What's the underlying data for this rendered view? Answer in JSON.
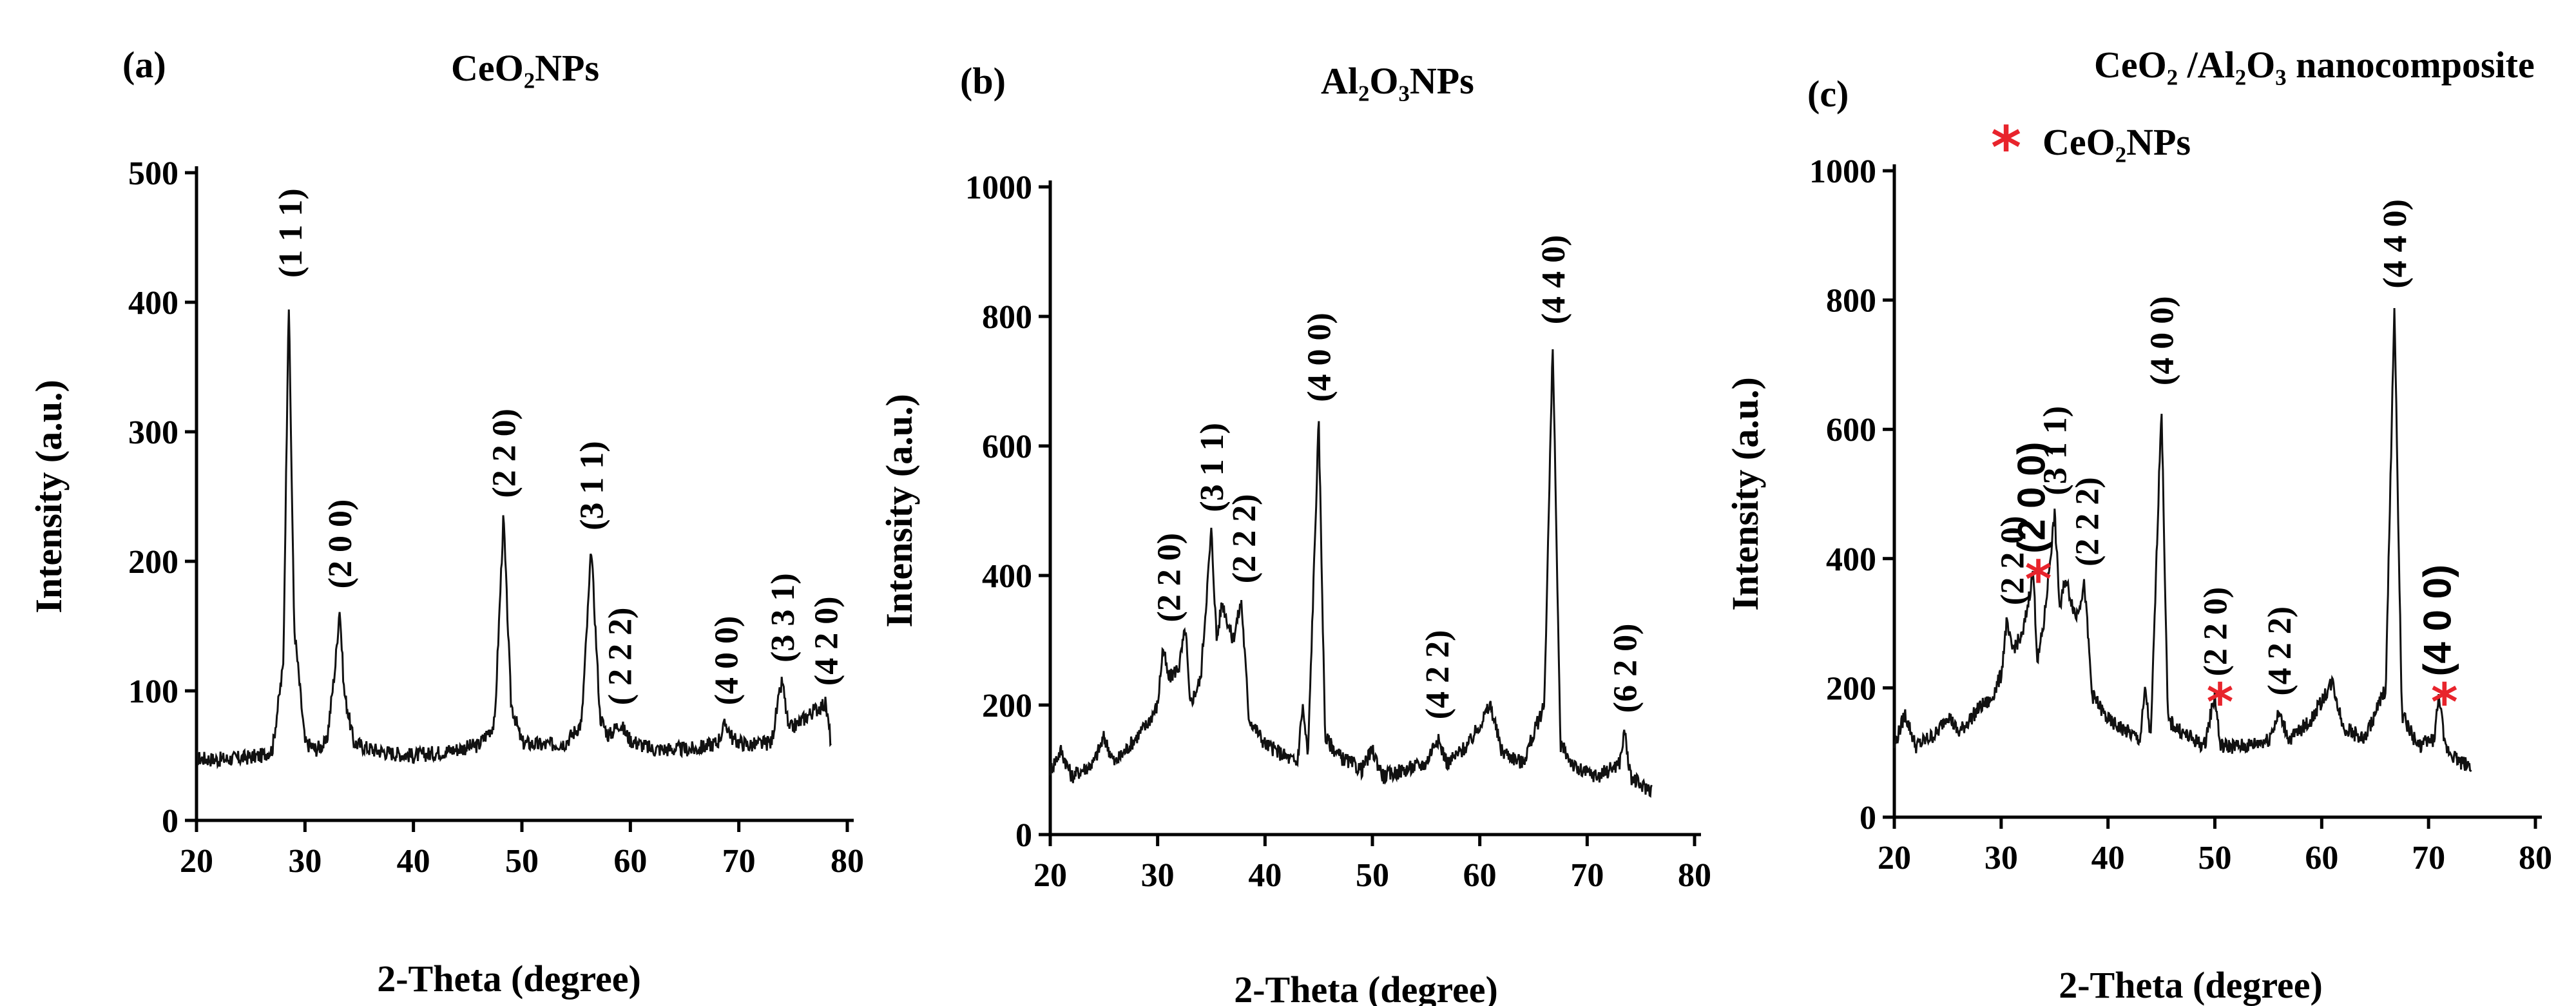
{
  "colors": {
    "axis": "#000000",
    "trace": "#111111",
    "marker": "#e8242c",
    "background": "#ffffff"
  },
  "chart_data": [
    {
      "id": "a",
      "type": "line",
      "panel_label": "(a)",
      "title": "CeO₂NPs",
      "xlabel": "2-Theta (degree)",
      "ylabel": "Intensity (a.u.)",
      "xlim": [
        20,
        80
      ],
      "ylim": [
        0,
        500
      ],
      "xticks": [
        20,
        30,
        40,
        50,
        60,
        70,
        80
      ],
      "yticks": [
        0,
        100,
        200,
        300,
        400,
        500
      ],
      "baseline": [
        [
          20,
          48
        ],
        [
          22,
          47
        ],
        [
          24,
          48
        ],
        [
          26,
          50
        ],
        [
          27,
          55
        ],
        [
          28,
          120
        ],
        [
          28.5,
          405
        ],
        [
          29,
          150
        ],
        [
          30,
          60
        ],
        [
          31,
          55
        ],
        [
          32,
          60
        ],
        [
          32.8,
          120
        ],
        [
          33.2,
          165
        ],
        [
          33.6,
          100
        ],
        [
          34.5,
          60
        ],
        [
          36,
          55
        ],
        [
          38,
          52
        ],
        [
          40,
          50
        ],
        [
          42,
          52
        ],
        [
          44,
          55
        ],
        [
          46,
          58
        ],
        [
          47.5,
          75
        ],
        [
          48.3,
          235
        ],
        [
          49,
          90
        ],
        [
          50,
          60
        ],
        [
          52,
          58
        ],
        [
          54,
          60
        ],
        [
          55.5,
          75
        ],
        [
          56.4,
          210
        ],
        [
          57.2,
          80
        ],
        [
          58,
          65
        ],
        [
          59,
          75
        ],
        [
          60,
          62
        ],
        [
          62,
          55
        ],
        [
          64,
          55
        ],
        [
          66,
          55
        ],
        [
          68,
          60
        ],
        [
          68.8,
          75
        ],
        [
          69.5,
          62
        ],
        [
          71,
          58
        ],
        [
          73,
          60
        ],
        [
          73.5,
          85
        ],
        [
          74,
          108
        ],
        [
          74.6,
          70
        ],
        [
          75.5,
          75
        ],
        [
          76.5,
          82
        ],
        [
          77.5,
          88
        ],
        [
          78,
          90
        ],
        [
          78.5,
          60
        ]
      ],
      "peaks": [
        {
          "label": "(1 1 1)",
          "x": 28.6,
          "y": 405
        },
        {
          "label": "(2 0 0)",
          "x": 33.2,
          "y": 165
        },
        {
          "label": "(2 2 0)",
          "x": 48.3,
          "y": 235
        },
        {
          "label": "(3 1 1)",
          "x": 56.4,
          "y": 210
        },
        {
          "label": "( 2 2 2)",
          "x": 59.0,
          "y": 75
        },
        {
          "label": "(4 0 0)",
          "x": 68.8,
          "y": 75
        },
        {
          "label": "(3 3 1)",
          "x": 74.0,
          "y": 108
        },
        {
          "label": "(4 2 0)",
          "x": 78.0,
          "y": 90
        }
      ],
      "markers": []
    },
    {
      "id": "b",
      "type": "line",
      "panel_label": "(b)",
      "title": "Al₂O₃NPs",
      "xlabel": "2-Theta (degree)",
      "ylabel": "Intensity (a.u.)",
      "xlim": [
        20,
        80
      ],
      "ylim": [
        0,
        1000
      ],
      "xticks": [
        20,
        30,
        40,
        50,
        60,
        70,
        80
      ],
      "yticks": [
        0,
        200,
        400,
        600,
        800,
        1000
      ],
      "baseline": [
        [
          20,
          100
        ],
        [
          21,
          130
        ],
        [
          22,
          90
        ],
        [
          24,
          110
        ],
        [
          25,
          150
        ],
        [
          26,
          110
        ],
        [
          28,
          150
        ],
        [
          29,
          170
        ],
        [
          30,
          200
        ],
        [
          30.5,
          290
        ],
        [
          31,
          240
        ],
        [
          32,
          260
        ],
        [
          32.6,
          320
        ],
        [
          33,
          200
        ],
        [
          34,
          240
        ],
        [
          35,
          470
        ],
        [
          35.5,
          300
        ],
        [
          36,
          360
        ],
        [
          37,
          300
        ],
        [
          37.8,
          360
        ],
        [
          38.5,
          180
        ],
        [
          40,
          140
        ],
        [
          42,
          120
        ],
        [
          43,
          110
        ],
        [
          43.5,
          200
        ],
        [
          44,
          120
        ],
        [
          45,
          640
        ],
        [
          45.6,
          150
        ],
        [
          47,
          120
        ],
        [
          49,
          100
        ],
        [
          50,
          130
        ],
        [
          51,
          90
        ],
        [
          53,
          100
        ],
        [
          55,
          110
        ],
        [
          56,
          150
        ],
        [
          57,
          110
        ],
        [
          59,
          140
        ],
        [
          60,
          170
        ],
        [
          61,
          200
        ],
        [
          62,
          130
        ],
        [
          64,
          110
        ],
        [
          66,
          200
        ],
        [
          66.8,
          760
        ],
        [
          67.5,
          140
        ],
        [
          69,
          100
        ],
        [
          71,
          90
        ],
        [
          73,
          110
        ],
        [
          73.5,
          160
        ],
        [
          74,
          90
        ],
        [
          75,
          75
        ],
        [
          76,
          70
        ]
      ],
      "peaks": [
        {
          "label": "(2 2 0)",
          "x": 31.0,
          "y": 300
        },
        {
          "label": "(3 1 1)",
          "x": 35.0,
          "y": 470
        },
        {
          "label": "(2 2 2)",
          "x": 38.0,
          "y": 360
        },
        {
          "label": "(4 0 0)",
          "x": 45.0,
          "y": 640
        },
        {
          "label": "(4 2 2)",
          "x": 56.0,
          "y": 150
        },
        {
          "label": "(4 4 0)",
          "x": 66.8,
          "y": 760
        },
        {
          "label": "(6 2 0)",
          "x": 73.5,
          "y": 160
        }
      ],
      "markers": []
    },
    {
      "id": "c",
      "type": "line",
      "panel_label": "(c)",
      "title": "CeO₂ /Al₂O₃ nanocomposite",
      "legend_label": "CeO₂NPs",
      "xlabel": "2-Theta (degree)",
      "ylabel": "Intensity (a.u.)",
      "xlim": [
        20,
        80
      ],
      "ylim": [
        0,
        1000
      ],
      "xticks": [
        20,
        30,
        40,
        50,
        60,
        70,
        80
      ],
      "yticks": [
        0,
        200,
        400,
        600,
        800,
        1000
      ],
      "baseline": [
        [
          20,
          110
        ],
        [
          21,
          160
        ],
        [
          22,
          110
        ],
        [
          24,
          130
        ],
        [
          25,
          160
        ],
        [
          26,
          130
        ],
        [
          28,
          170
        ],
        [
          29,
          180
        ],
        [
          30,
          220
        ],
        [
          30.5,
          300
        ],
        [
          31,
          260
        ],
        [
          32,
          280
        ],
        [
          33,
          380
        ],
        [
          33.4,
          240
        ],
        [
          34,
          300
        ],
        [
          35,
          470
        ],
        [
          35.5,
          320
        ],
        [
          36,
          370
        ],
        [
          37,
          310
        ],
        [
          37.8,
          360
        ],
        [
          38.5,
          190
        ],
        [
          40,
          150
        ],
        [
          42,
          130
        ],
        [
          43,
          120
        ],
        [
          43.5,
          200
        ],
        [
          44,
          120
        ],
        [
          45,
          640
        ],
        [
          45.6,
          150
        ],
        [
          47,
          130
        ],
        [
          49,
          110
        ],
        [
          50,
          190
        ],
        [
          50.5,
          110
        ],
        [
          53,
          110
        ],
        [
          55,
          120
        ],
        [
          56,
          160
        ],
        [
          57,
          120
        ],
        [
          59,
          150
        ],
        [
          60,
          180
        ],
        [
          61,
          210
        ],
        [
          62,
          140
        ],
        [
          64,
          120
        ],
        [
          66,
          200
        ],
        [
          66.8,
          790
        ],
        [
          67.5,
          160
        ],
        [
          69,
          110
        ],
        [
          70.5,
          120
        ],
        [
          71,
          190
        ],
        [
          71.5,
          110
        ],
        [
          73,
          85
        ],
        [
          74,
          80
        ]
      ],
      "peaks": [
        {
          "label": "(2 2 0)",
          "x": 31.0,
          "y": 300,
          "sans": false
        },
        {
          "label": "(2 0 0)",
          "x": 33.0,
          "y": 380,
          "sans": true
        },
        {
          "label": "(3 1 1)",
          "x": 35.0,
          "y": 470,
          "sans": false
        },
        {
          "label": "(2 2 2)",
          "x": 38.0,
          "y": 360,
          "sans": false
        },
        {
          "label": "(4 0 0)",
          "x": 45.0,
          "y": 640,
          "sans": false
        },
        {
          "label": "(2 2 0)",
          "x": 50.0,
          "y": 190,
          "sans": false
        },
        {
          "label": "(4 2 2)",
          "x": 56.0,
          "y": 160,
          "sans": false
        },
        {
          "label": "(4 4 0)",
          "x": 66.8,
          "y": 790,
          "sans": false
        },
        {
          "label": "(4 0 0)",
          "x": 71.0,
          "y": 190,
          "sans": true
        }
      ],
      "markers": [
        {
          "symbol": "*",
          "x": 33.0,
          "y": 380
        },
        {
          "symbol": "*",
          "x": 50.0,
          "y": 190
        },
        {
          "symbol": "*",
          "x": 71.0,
          "y": 190
        }
      ]
    }
  ]
}
